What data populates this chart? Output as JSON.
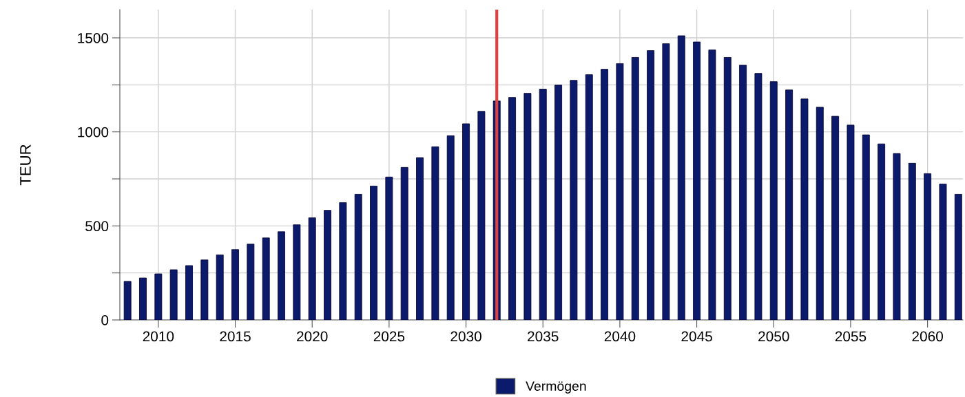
{
  "chart_data": {
    "type": "bar",
    "ylabel": "TEUR",
    "x": [
      2008,
      2009,
      2010,
      2011,
      2012,
      2013,
      2014,
      2015,
      2016,
      2017,
      2018,
      2019,
      2020,
      2021,
      2022,
      2023,
      2024,
      2025,
      2026,
      2027,
      2028,
      2029,
      2030,
      2031,
      2032,
      2033,
      2034,
      2035,
      2036,
      2037,
      2038,
      2039,
      2040,
      2041,
      2042,
      2043,
      2044,
      2045,
      2046,
      2047,
      2048,
      2049,
      2050,
      2051,
      2052,
      2053,
      2054,
      2055,
      2056,
      2057,
      2058,
      2059,
      2060,
      2061,
      2062
    ],
    "series": [
      {
        "name": "Vermögen",
        "color": "#0c1a6b",
        "values": [
          205,
          223,
          245,
          267,
          289,
          319,
          346,
          374,
          403,
          436,
          469,
          506,
          543,
          583,
          624,
          668,
          712,
          760,
          811,
          863,
          921,
          980,
          1043,
          1109,
          1164,
          1183,
          1205,
          1227,
          1249,
          1274,
          1304,
          1333,
          1363,
          1396,
          1432,
          1469,
          1511,
          1478,
          1436,
          1396,
          1355,
          1311,
          1267,
          1223,
          1175,
          1131,
          1083,
          1036,
          984,
          936,
          885,
          833,
          778,
          723,
          668
        ]
      }
    ],
    "xlim": [
      2007.5,
      2062.3
    ],
    "xticks": [
      2010,
      2015,
      2020,
      2025,
      2030,
      2035,
      2040,
      2045,
      2050,
      2055,
      2060
    ],
    "ylim": [
      0,
      1650
    ],
    "yticks": [
      0,
      {
        "value": 250,
        "label": null
      },
      500,
      {
        "value": 750,
        "label": null
      },
      1000,
      {
        "value": 1250,
        "label": null
      },
      1500
    ],
    "ref_lines": [
      {
        "axis": "x",
        "value": 2032,
        "color": "#e04040"
      }
    ],
    "grid": true,
    "legend": "bottom"
  }
}
